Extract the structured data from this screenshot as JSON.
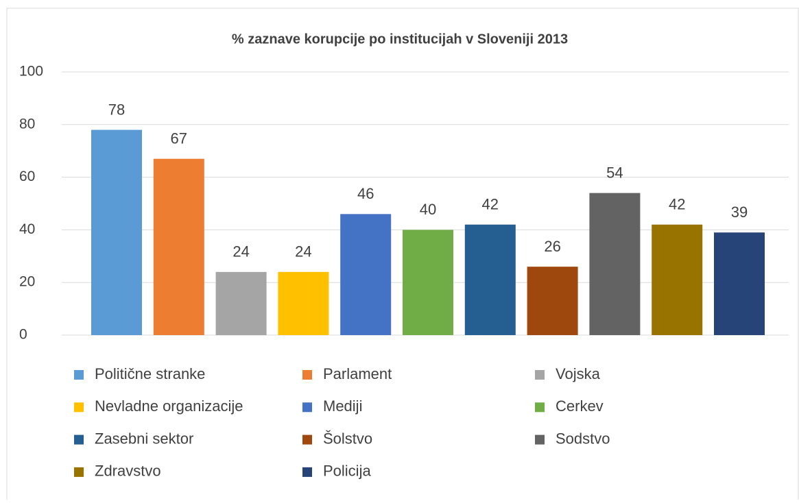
{
  "chart_data": {
    "type": "bar",
    "title": "% zaznave korupcije po institucijah v Sloveniji 2013",
    "ylim": [
      0,
      100
    ],
    "yticks": [
      0,
      20,
      40,
      60,
      80,
      100
    ],
    "grid": true,
    "series": [
      {
        "name": "Politične stranke",
        "color": "#5b9bd5",
        "values": [
          78
        ]
      },
      {
        "name": "Parlament",
        "color": "#ed7d31",
        "values": [
          67
        ]
      },
      {
        "name": "Vojska",
        "color": "#a5a5a5",
        "values": [
          24
        ]
      },
      {
        "name": "Nevladne organizacije",
        "color": "#ffc000",
        "values": [
          24
        ]
      },
      {
        "name": "Mediji",
        "color": "#4472c4",
        "values": [
          46
        ]
      },
      {
        "name": "Cerkev",
        "color": "#70ad47",
        "values": [
          40
        ]
      },
      {
        "name": "Zasebni sektor",
        "color": "#255e91",
        "values": [
          42
        ]
      },
      {
        "name": "Šolstvo",
        "color": "#9e480e",
        "values": [
          26
        ]
      },
      {
        "name": "Sodstvo",
        "color": "#636363",
        "values": [
          54
        ]
      },
      {
        "name": "Zdravstvo",
        "color": "#997300",
        "values": [
          42
        ]
      },
      {
        "name": "Policija",
        "color": "#264478",
        "values": [
          39
        ]
      }
    ]
  }
}
